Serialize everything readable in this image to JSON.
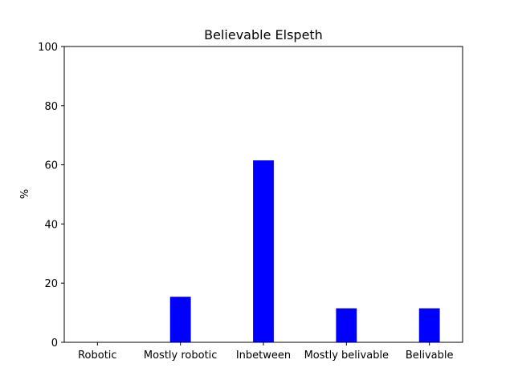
{
  "chart_data": {
    "type": "bar",
    "title": "Believable Elspeth",
    "xlabel": "",
    "ylabel": "%",
    "categories": [
      "Robotic",
      "Mostly robotic",
      "Inbetween",
      "Mostly belivable",
      "Belivable"
    ],
    "values": [
      0,
      15.4,
      61.5,
      11.5,
      11.5
    ],
    "ylim": [
      0,
      100
    ],
    "yticks": [
      0,
      20,
      40,
      60,
      80,
      100
    ],
    "ytick_labels": [
      "0",
      "20",
      "40",
      "60",
      "80",
      "100"
    ],
    "bar_color": "#0000ff",
    "grid": false,
    "legend": "none"
  }
}
